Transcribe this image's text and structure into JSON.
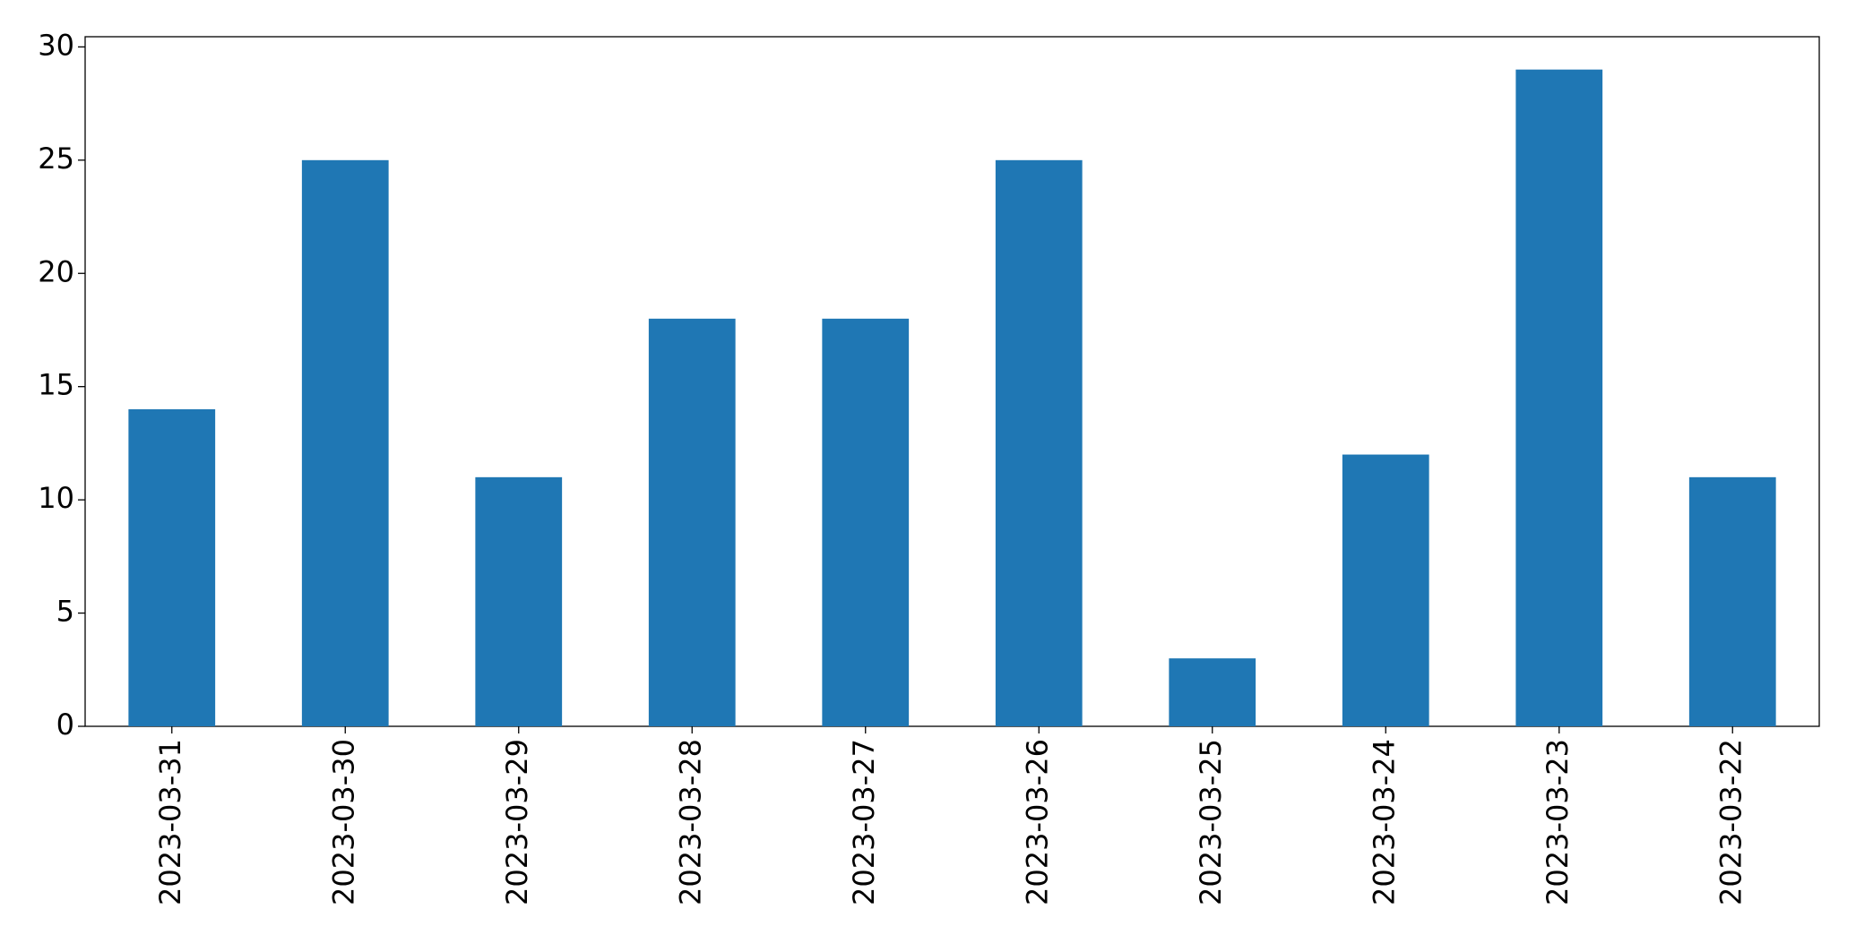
{
  "chart_data": {
    "type": "bar",
    "categories": [
      "2023-03-31",
      "2023-03-30",
      "2023-03-29",
      "2023-03-28",
      "2023-03-27",
      "2023-03-26",
      "2023-03-25",
      "2023-03-24",
      "2023-03-23",
      "2023-03-22"
    ],
    "values": [
      14,
      25,
      11,
      18,
      18,
      25,
      3,
      12,
      29,
      11
    ],
    "color": "#1f77b4",
    "ylim": [
      0,
      30.45
    ],
    "yticks": [
      0,
      5,
      10,
      15,
      20,
      25,
      30
    ],
    "grid": false
  }
}
